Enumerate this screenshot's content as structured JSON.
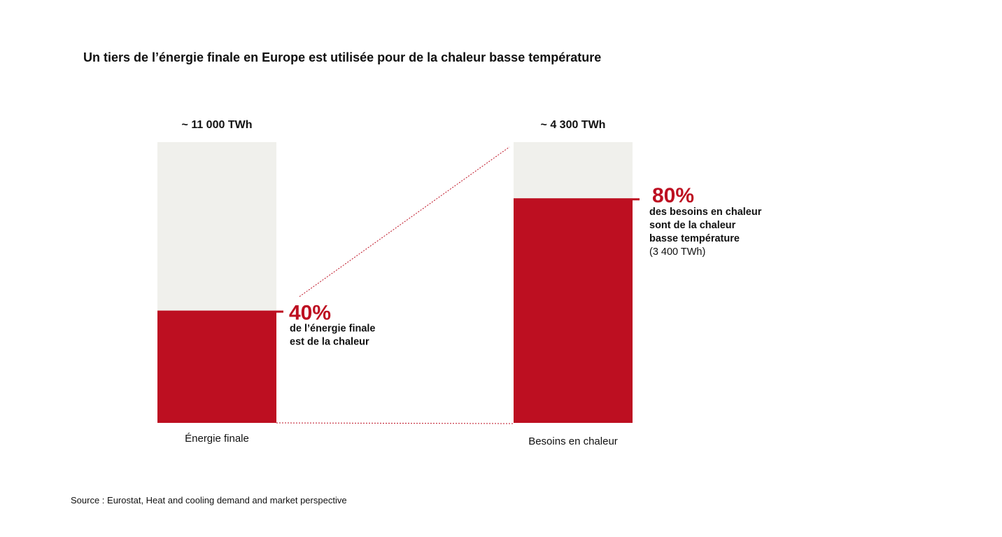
{
  "title": "Un tiers de l’énergie finale en Europe est utilisée pour de la chaleur basse température",
  "source": "Source : Eurostat, Heat and cooling demand and market perspective",
  "colors": {
    "highlight": "#bd0f21",
    "background_bar": "#f0f0ec",
    "text": "#111111"
  },
  "chart_data": {
    "type": "bar",
    "stacked": true,
    "categories": [
      "Énergie finale",
      "Besoins en chaleur"
    ],
    "totals_text": [
      "~ 11 000 TWh",
      "~ 4 300 TWh"
    ],
    "totals_twh": [
      11000,
      4300
    ],
    "highlight_share": [
      0.4,
      0.8
    ],
    "annotations": [
      {
        "value_text": "40%",
        "lines_bold": [
          "de l’énergie finale",
          "est de la chaleur"
        ],
        "lines_normal": []
      },
      {
        "value_text": "80%",
        "lines_bold": [
          "des besoins en chaleur",
          "sont de la chaleur",
          "basse température"
        ],
        "lines_normal": [
          "(3 400 TWh)"
        ]
      }
    ],
    "connector": "dotted lines linking the heat share of the first bar to the full second bar",
    "legend": "none",
    "grid": false
  }
}
